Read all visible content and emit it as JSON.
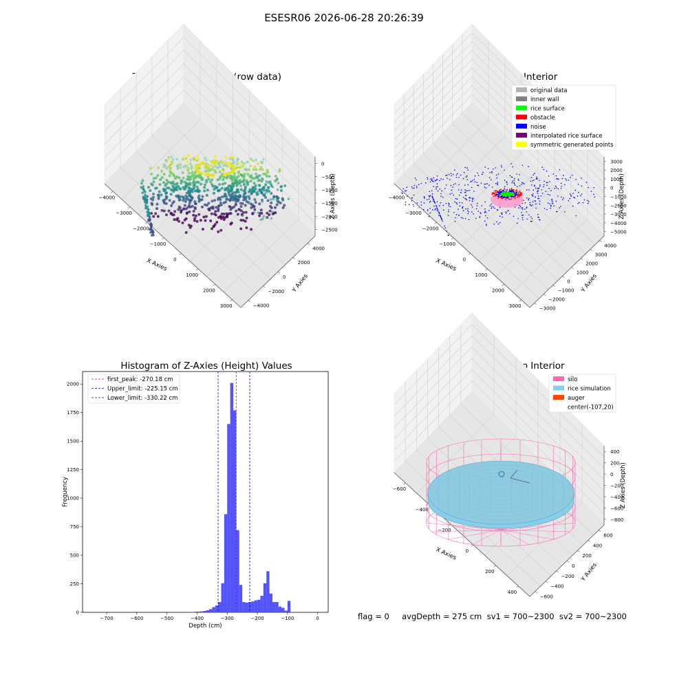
{
  "suptitle": "ESESR06 2026-06-28 20:26:39",
  "status_line": "flag = 0     avgDepth = 275 cm  sv1 = 700~2300  sv2 = 700~2300",
  "panels": {
    "raw": {
      "title": "3D Plot of Silo Interior(row data)",
      "xlabel": "X Axies",
      "ylabel": "Y Axies",
      "zlabel": "Z Axies (Depth)",
      "xticks": [
        "−4000",
        "−3000",
        "−2000",
        "−1000",
        "0",
        "1000",
        "2000",
        "3000"
      ],
      "yticks": [
        "−4000",
        "−2000",
        "0",
        "2000",
        "4000"
      ],
      "zticks": [
        "0",
        "−500",
        "−1000",
        "−1500",
        "−2000",
        "−2500"
      ]
    },
    "classify": {
      "title": "3D classify of Silo Interior",
      "xlabel": "X Axies",
      "ylabel": "Y Axies",
      "zlabel": "Z Axies (Depth)",
      "xticks": [
        "−4000",
        "−3000",
        "−2000",
        "−1000",
        "0",
        "1000",
        "2000",
        "3000"
      ],
      "yticks": [
        "−3000",
        "−2000",
        "−1000",
        "0",
        "1000",
        "2000",
        "3000",
        "4000"
      ],
      "zticks": [
        "3000",
        "2000",
        "1000",
        "0",
        "−1000",
        "−2000",
        "−3000",
        "−4000",
        "−5000"
      ],
      "legend": [
        {
          "label": "original data",
          "color": "#b3b3b3"
        },
        {
          "label": "inner wall",
          "color": "#808080"
        },
        {
          "label": "rice surface",
          "color": "#00ff00"
        },
        {
          "label": "obstacle",
          "color": "#ff0000"
        },
        {
          "label": "noise",
          "color": "#0000ff"
        },
        {
          "label": "interpolated rice surface",
          "color": "#800080"
        },
        {
          "label": "symmetric generated points",
          "color": "#ffff00"
        }
      ]
    },
    "sim": {
      "title": "3D simulation of Silo Interior",
      "xlabel": "X Axies",
      "ylabel": "Y Axies",
      "zlabel": "Z Axies (Depth)",
      "xticks": [
        "−600",
        "−400",
        "−200",
        "0",
        "200",
        "400"
      ],
      "yticks": [
        "−600",
        "−400",
        "−200",
        "0",
        "200",
        "400",
        "600"
      ],
      "zticks": [
        "400",
        "200",
        "0",
        "−200",
        "−400",
        "−600",
        "−800"
      ],
      "legend": [
        {
          "label": "silo",
          "color": "#ff69b4"
        },
        {
          "label": "rice simulation",
          "color": "#87ceeb"
        },
        {
          "label": "auger",
          "color": "#ff4500"
        },
        {
          "label": "center(-107,20)",
          "color": ""
        }
      ]
    }
  },
  "chart_data": [
    {
      "type": "scatter",
      "title": "3D Plot of Silo Interior(row data)",
      "xlabel": "X Axies",
      "ylabel": "Y Axies",
      "zlabel": "Z Axies (Depth)",
      "xlim": [
        -4500,
        3500
      ],
      "ylim": [
        -4500,
        4500
      ],
      "zlim": [
        -2700,
        0
      ]
    },
    {
      "type": "scatter",
      "title": "3D classify of Silo Interior",
      "xlabel": "X Axies",
      "ylabel": "Y Axies",
      "zlabel": "Z Axies (Depth)",
      "xlim": [
        -4500,
        3500
      ],
      "ylim": [
        -3500,
        4500
      ],
      "zlim": [
        -5000,
        3000
      ]
    },
    {
      "type": "bar",
      "title": "Histogram of Z-Axies (Height) Values",
      "xlabel": "Depth (cm)",
      "ylabel": "Frequency",
      "xlim": [
        -780,
        35
      ],
      "ylim": [
        0,
        2110
      ],
      "xticks": [
        -700,
        -600,
        -500,
        -400,
        -300,
        -200,
        -100,
        0
      ],
      "yticks": [
        0,
        250,
        500,
        750,
        1000,
        1250,
        1500,
        1750,
        2000
      ],
      "bin_width": 10,
      "bins": [
        {
          "x0": -420,
          "v": 3
        },
        {
          "x0": -410,
          "v": 5
        },
        {
          "x0": -400,
          "v": 6
        },
        {
          "x0": -390,
          "v": 8
        },
        {
          "x0": -380,
          "v": 12
        },
        {
          "x0": -370,
          "v": 18
        },
        {
          "x0": -360,
          "v": 28
        },
        {
          "x0": -350,
          "v": 45
        },
        {
          "x0": -340,
          "v": 60
        },
        {
          "x0": -330,
          "v": 90
        },
        {
          "x0": -320,
          "v": 255
        },
        {
          "x0": -310,
          "v": 860
        },
        {
          "x0": -300,
          "v": 1650
        },
        {
          "x0": -290,
          "v": 2010
        },
        {
          "x0": -280,
          "v": 1770
        },
        {
          "x0": -270,
          "v": 720
        },
        {
          "x0": -260,
          "v": 240
        },
        {
          "x0": -250,
          "v": 90
        },
        {
          "x0": -240,
          "v": 85
        },
        {
          "x0": -230,
          "v": 90
        },
        {
          "x0": -220,
          "v": 95
        },
        {
          "x0": -210,
          "v": 105
        },
        {
          "x0": -200,
          "v": 110
        },
        {
          "x0": -190,
          "v": 145
        },
        {
          "x0": -180,
          "v": 255
        },
        {
          "x0": -170,
          "v": 360
        },
        {
          "x0": -160,
          "v": 165
        },
        {
          "x0": -150,
          "v": 90
        },
        {
          "x0": -140,
          "v": 90
        },
        {
          "x0": -130,
          "v": 50
        },
        {
          "x0": -120,
          "v": 40
        },
        {
          "x0": -110,
          "v": 15
        },
        {
          "x0": -100,
          "v": 100
        }
      ],
      "vlines": [
        {
          "label": "first_peak: -270.18 cm",
          "x": -270.18,
          "color": "#ff0000"
        },
        {
          "label": "Upper_limit: -225.15 cm",
          "x": -225.15,
          "color": "#0000cc"
        },
        {
          "label": "Lower_limit: -330.22 cm",
          "x": -330.22,
          "color": "#0000cc"
        }
      ],
      "bar_color": "#4040ff"
    },
    {
      "type": "scatter",
      "title": "3D simulation of Silo Interior",
      "xlabel": "X Axies",
      "ylabel": "Y Axies",
      "zlabel": "Z Axies (Depth)",
      "xlim": [
        -700,
        500
      ],
      "ylim": [
        -700,
        700
      ],
      "zlim": [
        -900,
        450
      ]
    }
  ]
}
